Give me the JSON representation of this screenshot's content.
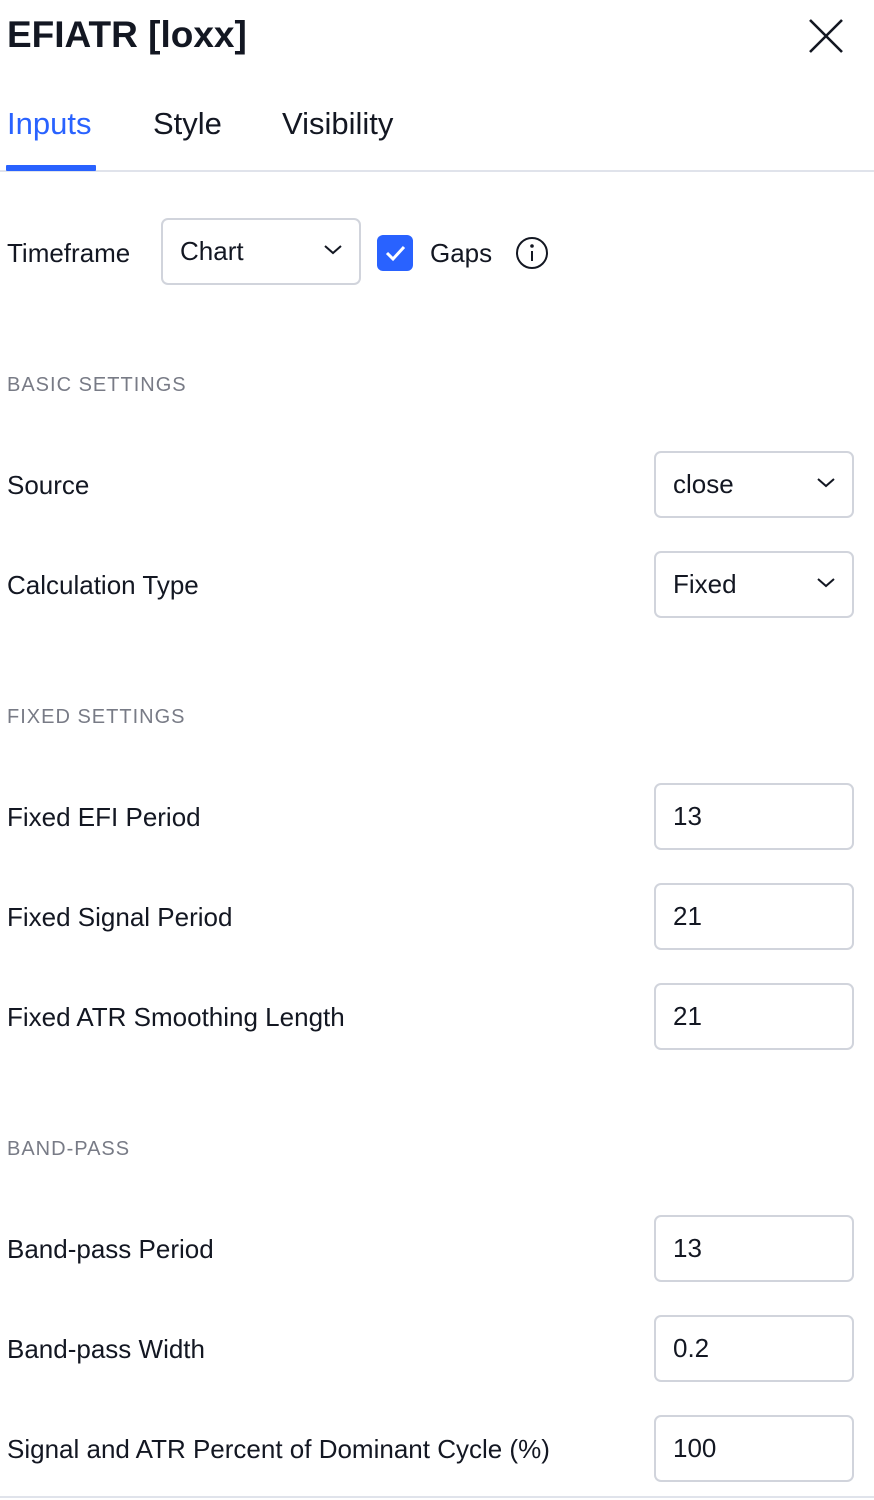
{
  "header": {
    "title": "EFIATR [loxx]",
    "close_icon": "close-icon"
  },
  "tabs": [
    {
      "label": "Inputs",
      "active": true
    },
    {
      "label": "Style"
    },
    {
      "label": "Visibility"
    }
  ],
  "accent_color": "#2962ff",
  "timeframe": {
    "label": "Timeframe",
    "value": "Chart",
    "gaps_label": "Gaps",
    "gaps_checked": true
  },
  "sections": {
    "basic": {
      "title": "BASIC SETTINGS",
      "rows": [
        {
          "label": "Source",
          "value": "close"
        },
        {
          "label": "Calculation Type",
          "value": "Fixed"
        }
      ]
    },
    "fixed": {
      "title": "FIXED SETTINGS",
      "rows": [
        {
          "label": "Fixed EFI Period",
          "value": "13"
        },
        {
          "label": "Fixed Signal Period",
          "value": "21"
        },
        {
          "label": "Fixed ATR Smoothing Length",
          "value": "21"
        }
      ]
    },
    "band": {
      "title": "BAND-PASS",
      "rows": [
        {
          "label": "Band-pass Period",
          "value": "13"
        },
        {
          "label": "Band-pass Width",
          "value": "0.2"
        },
        {
          "label": "Signal and ATR Percent of Dominant Cycle (%)",
          "value": "100"
        }
      ]
    }
  }
}
